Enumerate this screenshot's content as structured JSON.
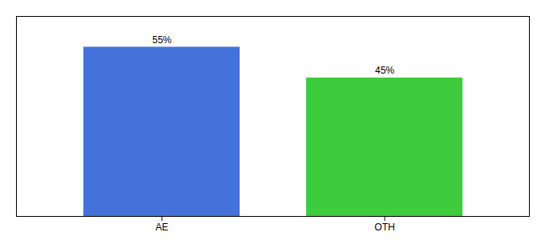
{
  "chart_data": {
    "type": "bar",
    "categories": [
      "AE",
      "OTH"
    ],
    "values": [
      55,
      45
    ],
    "colors": [
      "#4472db",
      "#3dcc3d"
    ],
    "ylim": [
      0,
      65
    ],
    "tick_labels": "x",
    "data_labels": true,
    "value_labels": [
      "55%",
      "45%"
    ]
  }
}
